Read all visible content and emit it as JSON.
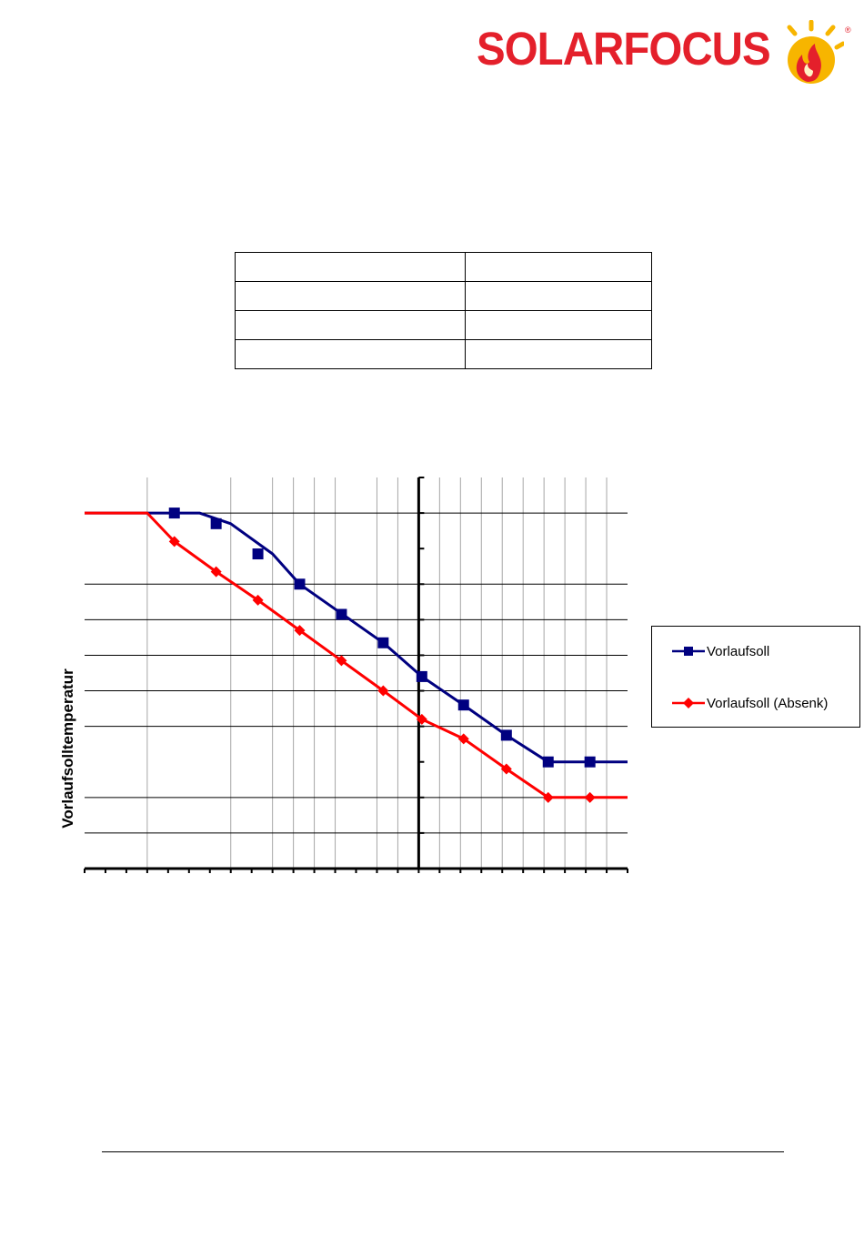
{
  "header": {
    "logo_text": "SOLARFOCUS",
    "logo_mark": "®",
    "brand_color": "#e4202b"
  },
  "table": {
    "rows": [
      [
        "",
        ""
      ],
      [
        "",
        ""
      ],
      [
        "",
        ""
      ],
      [
        "",
        ""
      ]
    ]
  },
  "chart_data": {
    "type": "line",
    "title": "",
    "xlabel": "",
    "ylabel": "Vorlaufsolltemperatur",
    "x_tick_labels": [],
    "y_tick_labels": [],
    "x_range": [
      -16,
      10
    ],
    "y_range": [
      0,
      11
    ],
    "x_gridlines": [
      -13,
      -9,
      -7,
      -6,
      -5,
      -4,
      -2,
      -1,
      1,
      2,
      3,
      4,
      5,
      6,
      7,
      8,
      9
    ],
    "y_gridlines": [
      1,
      2,
      4,
      5,
      6,
      7,
      8,
      10
    ],
    "grid": true,
    "legend_position": "right",
    "series": [
      {
        "name": "Vorlaufsoll",
        "color": "#000080",
        "marker": "square",
        "line": [
          [
            -16,
            10
          ],
          [
            -10.5,
            10
          ],
          [
            -9,
            9.7
          ],
          [
            -7,
            8.85
          ],
          [
            -5.7,
            8
          ],
          [
            -1.7,
            6.35
          ],
          [
            0.15,
            5.4
          ],
          [
            2.15,
            4.6
          ],
          [
            4.2,
            3.75
          ],
          [
            6.2,
            3
          ],
          [
            8.2,
            3
          ],
          [
            10,
            3
          ]
        ],
        "points": [
          [
            -11.7,
            10
          ],
          [
            -9.7,
            9.7
          ],
          [
            -7.7,
            8.85
          ],
          [
            -5.7,
            8
          ],
          [
            -3.7,
            7.15
          ],
          [
            -1.7,
            6.35
          ],
          [
            0.15,
            5.4
          ],
          [
            2.15,
            4.6
          ],
          [
            4.2,
            3.75
          ],
          [
            6.2,
            3
          ],
          [
            8.2,
            3
          ]
        ]
      },
      {
        "name": "Vorlaufsoll  (Absenk)",
        "color": "#ff0000",
        "marker": "diamond",
        "line": [
          [
            -16,
            10
          ],
          [
            -13,
            10
          ],
          [
            -11.7,
            9.2
          ],
          [
            -9.7,
            8.35
          ],
          [
            -7.7,
            7.55
          ],
          [
            -5.7,
            6.7
          ],
          [
            -3.7,
            5.85
          ],
          [
            -1.7,
            5.0
          ],
          [
            0.15,
            4.2
          ],
          [
            2.15,
            3.65
          ],
          [
            4.2,
            2.8
          ],
          [
            6.2,
            2
          ],
          [
            8.2,
            2
          ],
          [
            10,
            2
          ]
        ],
        "points": [
          [
            -11.7,
            9.2
          ],
          [
            -9.7,
            8.35
          ],
          [
            -7.7,
            7.55
          ],
          [
            -5.7,
            6.7
          ],
          [
            -3.7,
            5.85
          ],
          [
            -1.7,
            5.0
          ],
          [
            0.15,
            4.2
          ],
          [
            2.15,
            3.65
          ],
          [
            4.2,
            2.8
          ],
          [
            6.2,
            2
          ],
          [
            8.2,
            2
          ]
        ]
      }
    ]
  }
}
